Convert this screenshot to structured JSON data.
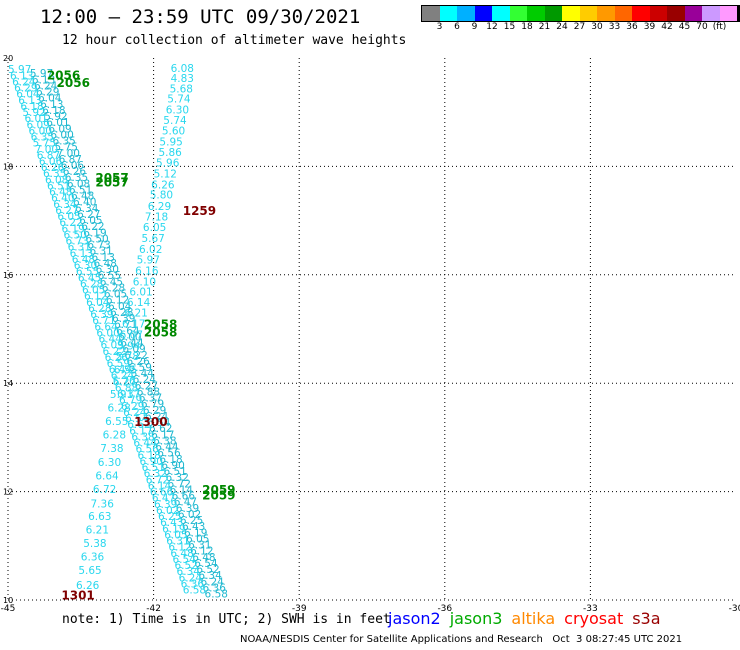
{
  "header": {
    "title": "12:00 — 23:59 UTC 09/30/2021",
    "subtitle": "12 hour collection of altimeter wave heights"
  },
  "colorbar": {
    "colors": [
      "#808080",
      "#00ffff",
      "#00b0ff",
      "#0000ff",
      "#00ffff",
      "#33ff33",
      "#00cc00",
      "#009900",
      "#ffff00",
      "#ffcc00",
      "#ff9900",
      "#ff6600",
      "#ff0000",
      "#cc0000",
      "#990000",
      "#990099",
      "#cc99ff",
      "#ff99ff",
      "#000000"
    ],
    "labels": [
      "3",
      "6",
      "9",
      "12",
      "15",
      "18",
      "21",
      "24",
      "27",
      "30",
      "33",
      "36",
      "39",
      "42",
      "45",
      "70",
      "(ft)"
    ]
  },
  "map": {
    "x_ticks": [
      "-45",
      "-42",
      "-39",
      "-36",
      "-33",
      "-30"
    ],
    "y_ticks": [
      "20",
      "18",
      "16",
      "14",
      "12",
      "10"
    ],
    "colors": {
      "swh": "#29d7ee",
      "swh_dark": "#1fb8d0",
      "jason3_time": "#008800",
      "cryosat_time": "#800000"
    },
    "time_labels": [
      {
        "text": "2056",
        "lon": -44.2,
        "lat": 19.7,
        "sat": "jason3"
      },
      {
        "text": "2056",
        "lon": -44.0,
        "lat": 19.56,
        "sat": "jason3"
      },
      {
        "text": "2057",
        "lon": -43.2,
        "lat": 17.8,
        "sat": "jason3"
      },
      {
        "text": "2057",
        "lon": -43.2,
        "lat": 17.72,
        "sat": "jason3"
      },
      {
        "text": "1259",
        "lon": -41.4,
        "lat": 17.2,
        "sat": "cryosat"
      },
      {
        "text": "2058",
        "lon": -42.2,
        "lat": 15.1,
        "sat": "jason3"
      },
      {
        "text": "2058",
        "lon": -42.2,
        "lat": 14.95,
        "sat": "jason3"
      },
      {
        "text": "1300",
        "lon": -42.4,
        "lat": 13.3,
        "sat": "cryosat"
      },
      {
        "text": "2059",
        "lon": -41.0,
        "lat": 12.05,
        "sat": "jason3"
      },
      {
        "text": "2059",
        "lon": -41.0,
        "lat": 11.95,
        "sat": "jason3"
      },
      {
        "text": "1301",
        "lon": -43.9,
        "lat": 10.1,
        "sat": "cryosat"
      }
    ],
    "cryosat_track": [
      {
        "lon": -41.65,
        "lat": 19.82,
        "v": "6.08"
      },
      {
        "lon": -41.65,
        "lat": 19.63,
        "v": "4.83"
      },
      {
        "lon": -41.67,
        "lat": 19.44,
        "v": "5.68"
      },
      {
        "lon": -41.72,
        "lat": 19.25,
        "v": "5.74"
      },
      {
        "lon": -41.75,
        "lat": 19.05,
        "v": "6.30"
      },
      {
        "lon": -41.8,
        "lat": 18.86,
        "v": "5.74"
      },
      {
        "lon": -41.83,
        "lat": 18.66,
        "v": "5.60"
      },
      {
        "lon": -41.88,
        "lat": 18.46,
        "v": "5.95"
      },
      {
        "lon": -41.9,
        "lat": 18.27,
        "v": "5.86"
      },
      {
        "lon": -41.95,
        "lat": 18.07,
        "v": "5.96"
      },
      {
        "lon": -42.0,
        "lat": 17.87,
        "v": "5.12"
      },
      {
        "lon": -42.05,
        "lat": 17.67,
        "v": "6.26"
      },
      {
        "lon": -42.08,
        "lat": 17.48,
        "v": "5.80"
      },
      {
        "lon": -42.12,
        "lat": 17.27,
        "v": "6.29"
      },
      {
        "lon": -42.18,
        "lat": 17.08,
        "v": "7.18"
      },
      {
        "lon": -42.22,
        "lat": 16.88,
        "v": "6.05"
      },
      {
        "lon": -42.25,
        "lat": 16.68,
        "v": "5.67"
      },
      {
        "lon": -42.3,
        "lat": 16.48,
        "v": "6.02"
      },
      {
        "lon": -42.35,
        "lat": 16.28,
        "v": "5.97"
      },
      {
        "lon": -42.38,
        "lat": 16.08,
        "v": "6.16"
      },
      {
        "lon": -42.43,
        "lat": 15.88,
        "v": "6.10"
      },
      {
        "lon": -42.5,
        "lat": 15.69,
        "v": "6.01"
      },
      {
        "lon": -42.55,
        "lat": 15.5,
        "v": "6.14"
      },
      {
        "lon": -42.6,
        "lat": 15.3,
        "v": "6.21"
      },
      {
        "lon": -42.65,
        "lat": 15.1,
        "v": "6.17"
      },
      {
        "lon": -42.7,
        "lat": 14.9,
        "v": "6.07"
      },
      {
        "lon": -42.75,
        "lat": 14.7,
        "v": "5.94"
      },
      {
        "lon": -42.78,
        "lat": 14.5,
        "v": "5.78"
      },
      {
        "lon": -42.82,
        "lat": 14.25,
        "v": "6.55"
      },
      {
        "lon": -42.85,
        "lat": 14.05,
        "v": "5.76"
      },
      {
        "lon": -42.9,
        "lat": 13.8,
        "v": "5.91"
      },
      {
        "lon": -42.95,
        "lat": 13.55,
        "v": "6.28"
      },
      {
        "lon": -43.0,
        "lat": 13.3,
        "v": "6.55"
      },
      {
        "lon": -43.05,
        "lat": 13.05,
        "v": "6.28"
      },
      {
        "lon": -43.1,
        "lat": 12.8,
        "v": "7.38"
      },
      {
        "lon": -43.15,
        "lat": 12.55,
        "v": "6.30"
      },
      {
        "lon": -43.2,
        "lat": 12.3,
        "v": "6.64"
      },
      {
        "lon": -43.25,
        "lat": 12.05,
        "v": "6.72"
      },
      {
        "lon": -43.3,
        "lat": 11.78,
        "v": "7.36"
      },
      {
        "lon": -43.35,
        "lat": 11.55,
        "v": "6.63"
      },
      {
        "lon": -43.4,
        "lat": 11.3,
        "v": "6.21"
      },
      {
        "lon": -43.45,
        "lat": 11.05,
        "v": "5.38"
      },
      {
        "lon": -43.5,
        "lat": 10.8,
        "v": "6.36"
      },
      {
        "lon": -43.55,
        "lat": 10.55,
        "v": "5.65"
      },
      {
        "lon": -43.6,
        "lat": 10.28,
        "v": "6.26"
      }
    ],
    "jason_swath": {
      "start": {
        "lon": -44.65,
        "lat": 19.72
      },
      "end": {
        "lon": -41.05,
        "lat": 10.12
      },
      "width_lon": 0.9,
      "rows": 86,
      "values": [
        "5.97",
        "6.13",
        "6.24",
        "6.29",
        "6.04",
        "6.13",
        "6.18",
        "5.92",
        "6.01",
        "6.09",
        "6.00",
        "6.35",
        "5.75",
        "7.00",
        "6.87",
        "6.06",
        "6.26",
        "6.35",
        "6.08",
        "6.51",
        "6.48",
        "6.40",
        "6.34",
        "6.27",
        "6.05",
        "6.22",
        "6.19",
        "6.50",
        "6.73",
        "6.31",
        "6.13",
        "6.48",
        "6.30",
        "6.55",
        "6.45",
        "6.28",
        "6.05",
        "6.12",
        "6.04",
        "6.28",
        "6.39",
        "6.71",
        "6.64",
        "6.00",
        "6.44",
        "6.09",
        "6.22",
        "6.26",
        "6.59",
        "6.44",
        "6.24",
        "6.27",
        "6.88",
        "6.37",
        "6.79",
        "6.29",
        "6.24",
        "6.54",
        "6.62",
        "6.17",
        "6.38",
        "6.44",
        "6.56",
        "6.18",
        "6.90",
        "6.51",
        "6.32",
        "6.72",
        "6.14",
        "6.66",
        "6.47",
        "6.39",
        "6.02",
        "6.25",
        "6.43",
        "6.19",
        "6.05",
        "6.31",
        "6.12",
        "6.48",
        "6.54",
        "6.52",
        "6.34",
        "6.24",
        "6.36",
        "6.58"
      ]
    }
  },
  "note": "note: 1) Time is in UTC; 2) SWH is in feet",
  "legend": [
    {
      "label": "jason2",
      "color": "#0000ff"
    },
    {
      "label": "jason3",
      "color": "#00aa00"
    },
    {
      "label": "altika",
      "color": "#ff8800"
    },
    {
      "label": "cryosat",
      "color": "#ff0000"
    },
    {
      "label": "s3a",
      "color": "#990000"
    }
  ],
  "footer": "NOAA/NESDIS Center for Satellite Applications and Research   Oct  3 08:27:45 UTC 2021"
}
